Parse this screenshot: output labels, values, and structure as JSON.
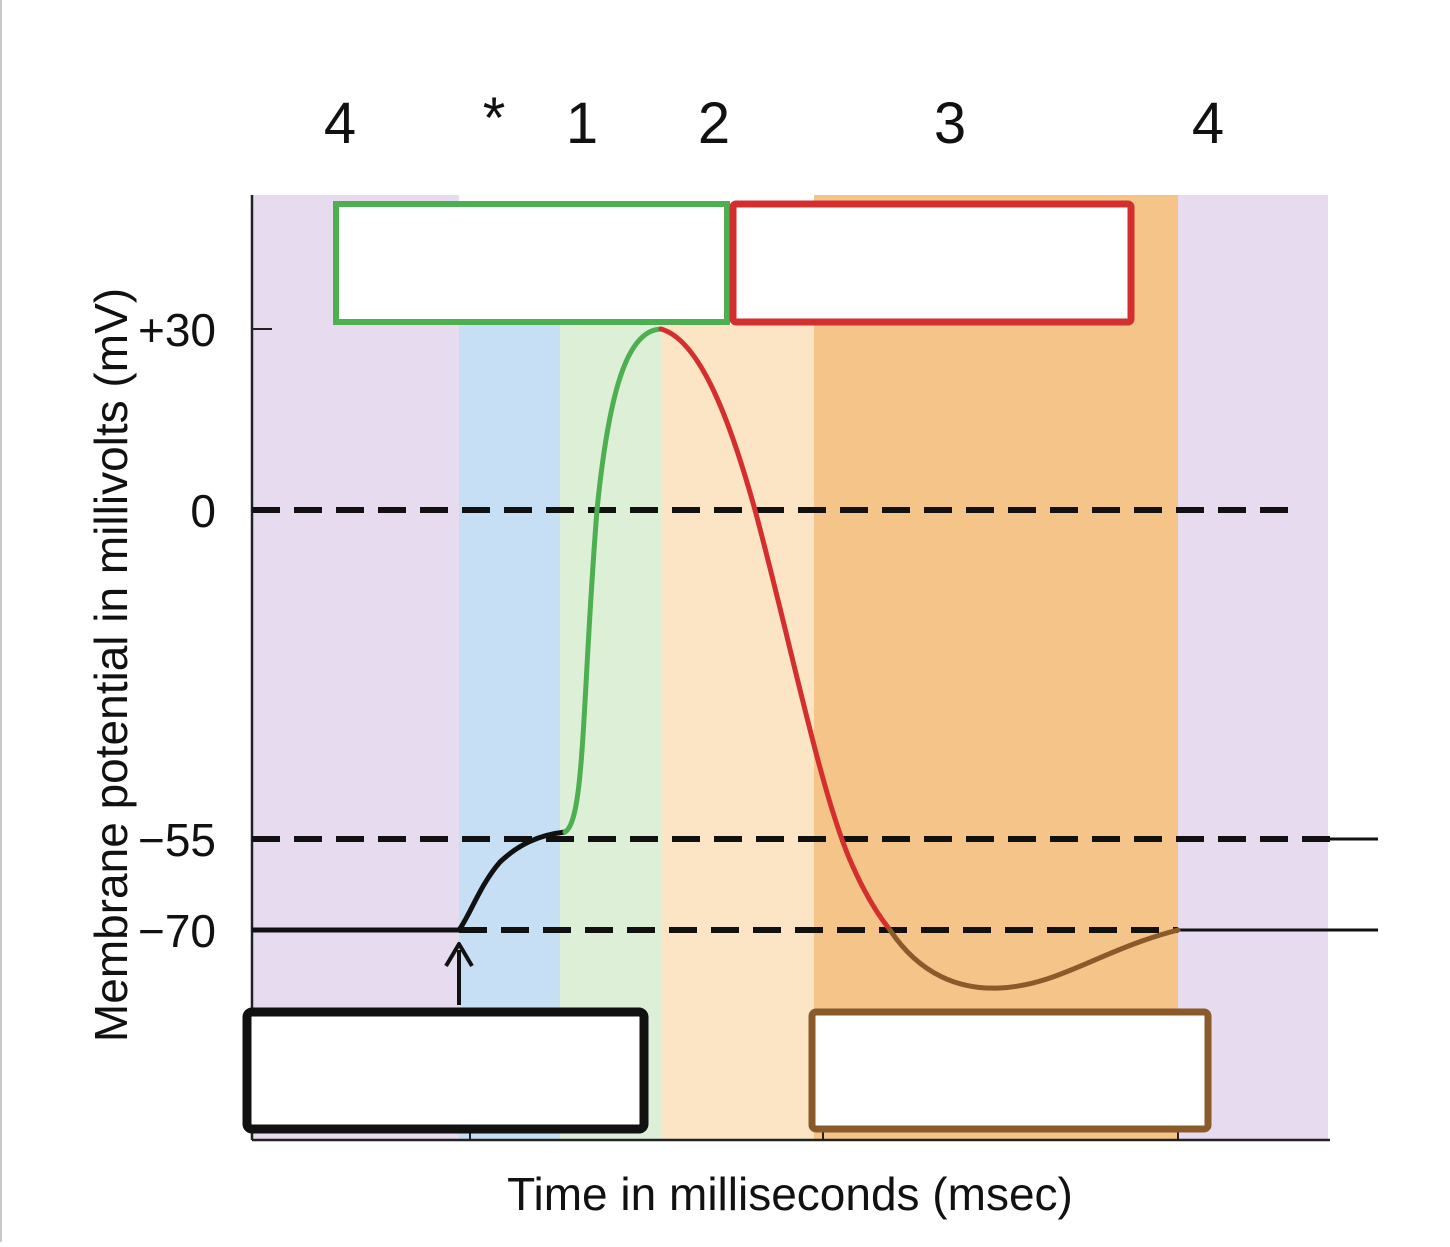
{
  "phase_labels": [
    "4",
    "*",
    "1",
    "2",
    "3",
    "4"
  ],
  "chart_data": {
    "type": "line",
    "title": "",
    "xlabel": "Time in milliseconds (msec)",
    "ylabel": "Membrane potential in millivolts (mV)",
    "y_ticks": [
      "+30",
      "0",
      "−55",
      "−70"
    ],
    "y_tick_values": [
      30,
      0,
      -55,
      -70
    ],
    "reference_lines_mV": [
      0,
      -55,
      -70
    ],
    "series": [
      {
        "color": "#111111",
        "segment": "resting to threshold",
        "values_mV": [
          -70,
          -70,
          -64,
          -58,
          -55
        ]
      },
      {
        "color": "#4caf50",
        "segment": "depolarization",
        "values_mV": [
          -55,
          0,
          30
        ]
      },
      {
        "color": "#d32f2f",
        "segment": "repolarization",
        "values_mV": [
          30,
          0,
          -55,
          -70
        ]
      },
      {
        "color": "#8b5a2b",
        "segment": "hyperpolarization",
        "values_mV": [
          -70,
          -80,
          -70
        ]
      }
    ],
    "stimulus_arrow": true,
    "grid": false
  },
  "colors": {
    "phase_purple": "#e7dcef",
    "phase_blue": "#c6dff4",
    "phase_green": "#ddefd6",
    "phase_light_orange": "#fbe5c4",
    "phase_orange": "#f4c488",
    "box_green": "#4caf50",
    "box_red": "#d32f2f",
    "box_black": "#111111",
    "box_brown": "#8b5a2b"
  },
  "label_boxes": [
    {
      "name": "depolarization-label-box",
      "color": "#4caf50",
      "text": ""
    },
    {
      "name": "repolarization-label-box",
      "color": "#d32f2f",
      "text": ""
    },
    {
      "name": "stimulus-label-box",
      "color": "#111111",
      "text": ""
    },
    {
      "name": "hyperpolarization-label-box",
      "color": "#8b5a2b",
      "text": ""
    }
  ]
}
